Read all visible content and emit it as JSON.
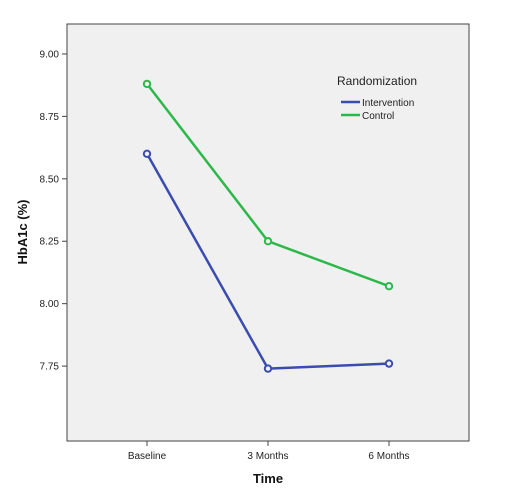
{
  "chart_data": {
    "type": "line",
    "title": "",
    "xlabel": "Time",
    "ylabel": "HbA1c (%)",
    "categories": [
      "Baseline",
      "3 Months",
      "6 Months"
    ],
    "ylim": [
      7.45,
      9.12
    ],
    "yticks": [
      "7.75",
      "8.00",
      "8.25",
      "8.50",
      "8.75",
      "9.00"
    ],
    "grid": false,
    "legend": {
      "title": "Randomization",
      "position": "top-right"
    },
    "series": [
      {
        "name": "Intervention",
        "color": "#3b4cb0",
        "values": [
          8.6,
          7.74,
          7.76
        ]
      },
      {
        "name": "Control",
        "color": "#2db84a",
        "values": [
          8.88,
          8.25,
          8.07
        ]
      }
    ]
  }
}
